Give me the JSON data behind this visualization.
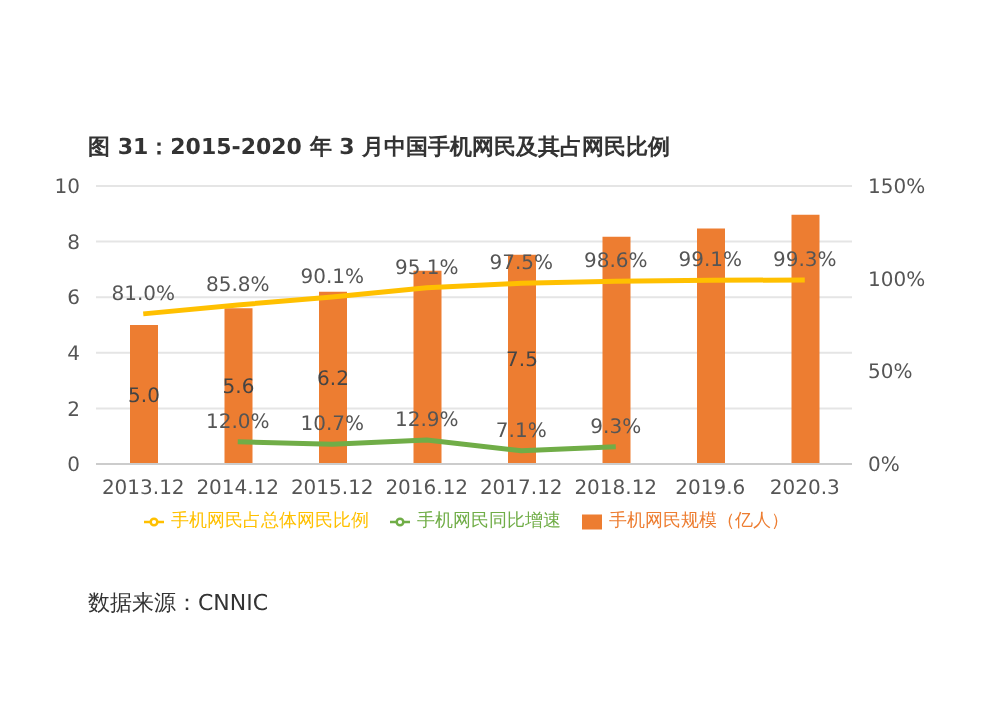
{
  "chart_data": {
    "type": "bar",
    "title": "图 31：2015-2020 年 3 月中国手机网民及其占网民比例",
    "categories": [
      "2013.12",
      "2014.12",
      "2015.12",
      "2016.12",
      "2017.12",
      "2018.12",
      "2019.6",
      "2020.3"
    ],
    "series": [
      {
        "name": "手机网民规模（亿人）",
        "color": "#ed7d31",
        "values": [
          5.0,
          5.6,
          6.2,
          6.95,
          7.53,
          8.17,
          8.47,
          8.97
        ],
        "value_labels": [
          "5.0",
          "5.6",
          "6.2",
          null,
          "7.5",
          null,
          null,
          null
        ]
      },
      {
        "name": "手机网民占总体网民比例",
        "type": "line",
        "axis": "y2",
        "color": "#ffc000",
        "values": [
          81.0,
          85.8,
          90.1,
          95.1,
          97.5,
          98.6,
          99.1,
          99.3
        ],
        "value_labels": [
          "81.0%",
          "85.8%",
          "90.1%",
          "95.1%",
          "97.5%",
          "98.6%",
          "99.1%",
          "99.3%"
        ]
      },
      {
        "name": "手机网民同比增速",
        "type": "line",
        "axis": "y2",
        "color": "#70ad47",
        "values": [
          null,
          12.0,
          10.7,
          12.9,
          7.1,
          9.3,
          null,
          null
        ],
        "value_labels": [
          null,
          "12.0%",
          "10.7%",
          "12.9%",
          "7.1%",
          "9.3%",
          null,
          null
        ]
      }
    ],
    "ylim": [
      0,
      10
    ],
    "yticks": [
      0,
      2,
      4,
      6,
      8,
      10
    ],
    "y2lim": [
      0,
      150
    ],
    "y2ticks": [
      {
        "value": 0,
        "label": "0%"
      },
      {
        "value": 50,
        "label": "50%"
      },
      {
        "value": 100,
        "label": "100%"
      },
      {
        "value": 150,
        "label": "150%"
      }
    ],
    "grid": "y",
    "legend": "bottom",
    "marker": "none",
    "annotations": [
      "数据来源：CNNIC"
    ]
  }
}
